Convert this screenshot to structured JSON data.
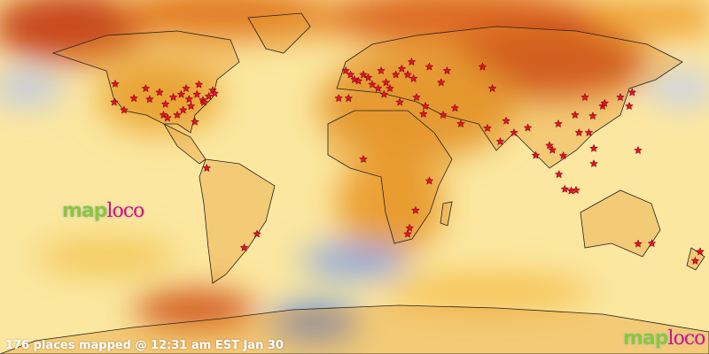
{
  "caption": "176 places mapped @ 12:31 am EST Jan 30",
  "logo": {
    "part1": "map",
    "part2": "loco"
  },
  "colors": {
    "marker": "#e8102e",
    "warm": "#f4a020",
    "hot": "#c8401a",
    "neutral": "#fbeaa0",
    "cool": "#a6bde6",
    "land_outline": "#222222"
  },
  "markers": [
    [
      -121.5,
      47.3
    ],
    [
      -122,
      38
    ],
    [
      -117,
      34
    ],
    [
      -112,
      40
    ],
    [
      -106,
      45
    ],
    [
      -104,
      39.5
    ],
    [
      -99,
      43
    ],
    [
      -96,
      37
    ],
    [
      -92,
      40.5
    ],
    [
      -88,
      42
    ],
    [
      -85.5,
      45
    ],
    [
      -84,
      39.5
    ],
    [
      -83,
      36
    ],
    [
      -81,
      28
    ],
    [
      -80,
      42
    ],
    [
      -79,
      47
    ],
    [
      -77,
      39
    ],
    [
      -76.5,
      38
    ],
    [
      -74,
      41
    ],
    [
      -72,
      44
    ],
    [
      -71,
      42.5
    ],
    [
      -90,
      31.5
    ],
    [
      -97,
      31.5
    ],
    [
      -95,
      30
    ],
    [
      -87,
      34
    ],
    [
      -75,
      4.5
    ],
    [
      -49.5,
      -29
    ],
    [
      -56,
      -36
    ],
    [
      -4.5,
      54
    ],
    [
      -2,
      52
    ],
    [
      0,
      49.5
    ],
    [
      2,
      48.8
    ],
    [
      4.5,
      52
    ],
    [
      7,
      50.5
    ],
    [
      9,
      47
    ],
    [
      12,
      45
    ],
    [
      13.5,
      54
    ],
    [
      16,
      48
    ],
    [
      18,
      45
    ],
    [
      21,
      52
    ],
    [
      24,
      55
    ],
    [
      27,
      52
    ],
    [
      29,
      58.5
    ],
    [
      30,
      50
    ],
    [
      38,
      56
    ],
    [
      44,
      48
    ],
    [
      47,
      54
    ],
    [
      31.5,
      40.5
    ],
    [
      36,
      36
    ],
    [
      45,
      31.5
    ],
    [
      54,
      27
    ],
    [
      65,
      56
    ],
    [
      70,
      45
    ],
    [
      15,
      42
    ],
    [
      -8,
      40
    ],
    [
      -3,
      40
    ],
    [
      23,
      38
    ],
    [
      35,
      32
    ],
    [
      51,
      35
    ],
    [
      4.5,
      9
    ],
    [
      38,
      -2
    ],
    [
      27,
      -29
    ],
    [
      28,
      -26
    ],
    [
      31,
      -17
    ],
    [
      67.5,
      24.8
    ],
    [
      74,
      18
    ],
    [
      77,
      28.5
    ],
    [
      81,
      22.5
    ],
    [
      88,
      25
    ],
    [
      92,
      11
    ],
    [
      99,
      16
    ],
    [
      100.5,
      13.7
    ],
    [
      103.5,
      27
    ],
    [
      106,
      10.8
    ],
    [
      112,
      31.5
    ],
    [
      114,
      22.5
    ],
    [
      117,
      40.5
    ],
    [
      121,
      31
    ],
    [
      119,
      22.5
    ],
    [
      121.5,
      14.5
    ],
    [
      121.5,
      6.75
    ],
    [
      126,
      36
    ],
    [
      127,
      37.5
    ],
    [
      135,
      40.5
    ],
    [
      139.5,
      36
    ],
    [
      141,
      43
    ],
    [
      103.8,
      1.3
    ],
    [
      106.8,
      -6.2
    ],
    [
      110,
      -7
    ],
    [
      112.5,
      -6.75
    ],
    [
      144,
      13.5
    ],
    [
      144,
      -34
    ],
    [
      151,
      -33.8
    ],
    [
      175.5,
      -38
    ],
    [
      173,
      -42.7
    ]
  ]
}
